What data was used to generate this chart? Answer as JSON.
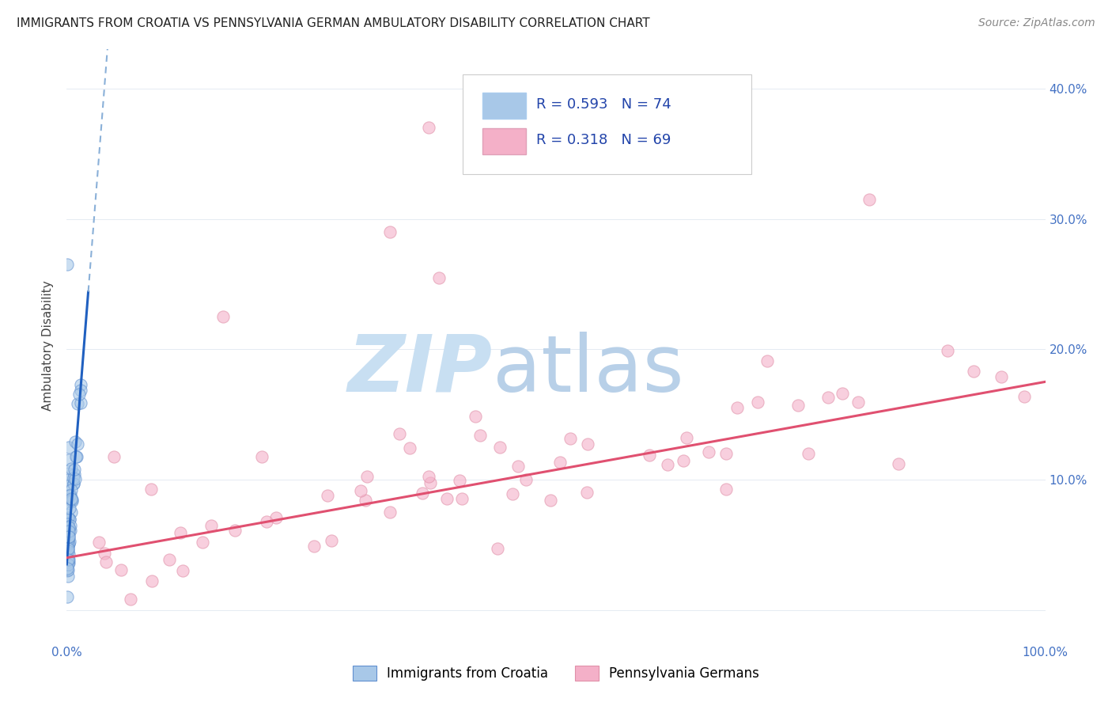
{
  "title": "IMMIGRANTS FROM CROATIA VS PENNSYLVANIA GERMAN AMBULATORY DISABILITY CORRELATION CHART",
  "source": "Source: ZipAtlas.com",
  "ylabel": "Ambulatory Disability",
  "legend_label1": "Immigrants from Croatia",
  "legend_label2": "Pennsylvania Germans",
  "r1": 0.593,
  "n1": 74,
  "r2": 0.318,
  "n2": 69,
  "color1": "#a8c8e8",
  "color2": "#f4b0c8",
  "color1_line": "#2060c0",
  "color2_line": "#e05070",
  "color1_edge": "#6090d0",
  "color2_edge": "#e090a8",
  "watermark_zip_color": "#c8dff2",
  "watermark_atlas_color": "#b8d0e8",
  "xlim": [
    0.0,
    1.0
  ],
  "ylim": [
    -0.025,
    0.43
  ],
  "yticks": [
    0.0,
    0.1,
    0.2,
    0.3,
    0.4
  ],
  "ytick_labels": [
    "",
    "10.0%",
    "20.0%",
    "30.0%",
    "40.0%"
  ],
  "xtick_labels_show": [
    "0.0%",
    "100.0%"
  ],
  "grid_color": "#e0e8f0",
  "bg_color": "#ffffff",
  "title_fontsize": 11,
  "legend_fontsize": 13,
  "scatter_size": 120,
  "scatter_alpha": 0.6
}
